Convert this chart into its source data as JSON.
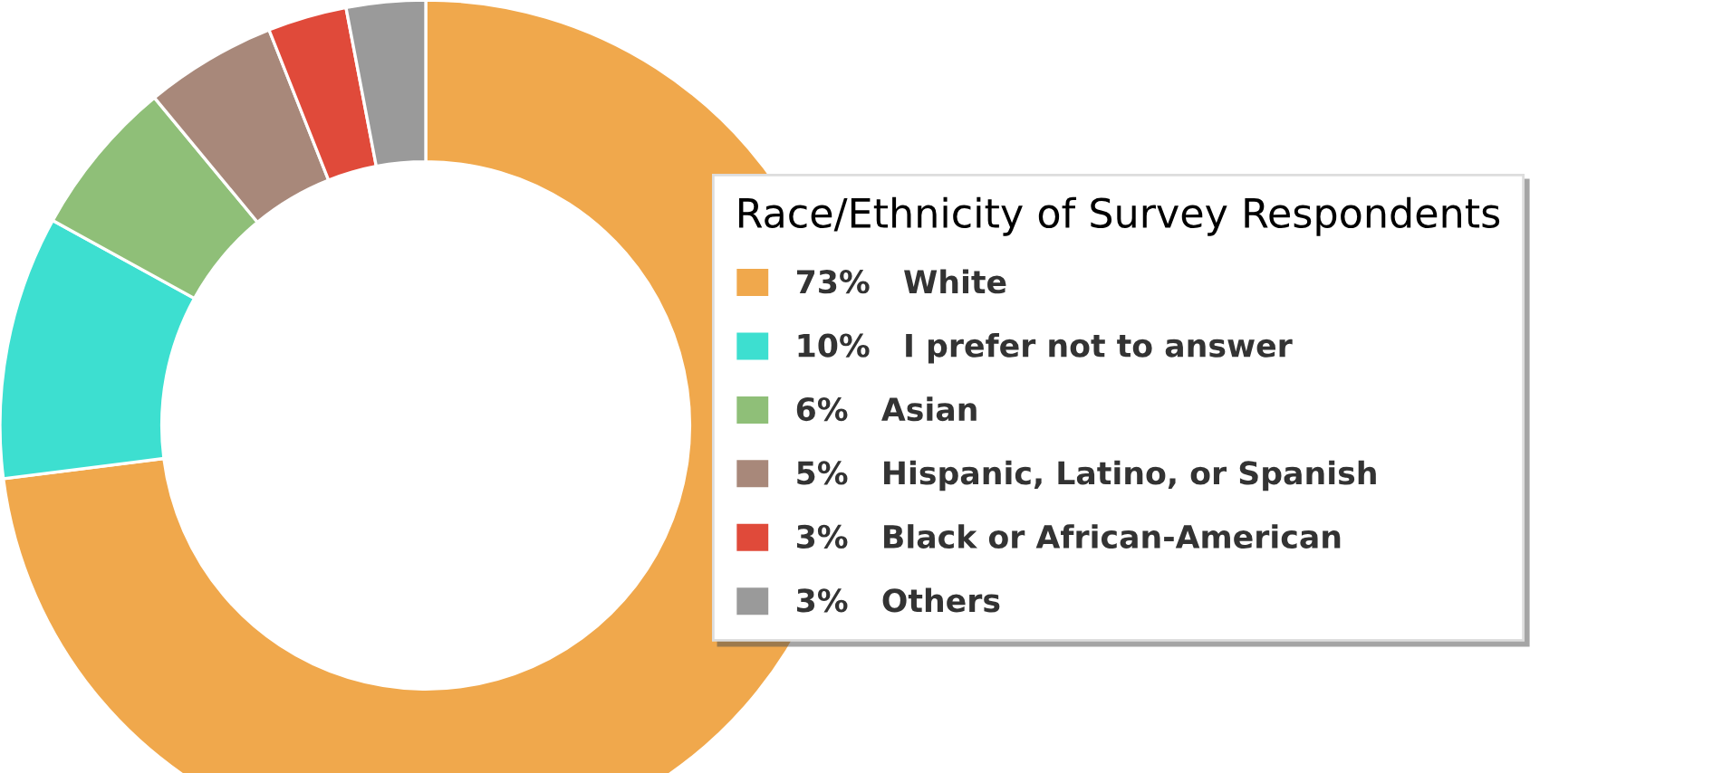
{
  "chart_data": {
    "type": "donut",
    "title": "Race/Ethnicity of Survey Respondents",
    "categories": [
      "White",
      "I prefer not to answer",
      "Asian",
      "Hispanic, Latino, or Spanish",
      "Black or African-American",
      "Others"
    ],
    "values": [
      73,
      10,
      6,
      5,
      3,
      3
    ],
    "value_labels": [
      "73%",
      "10%",
      "6%",
      "5%",
      "3%",
      "3%"
    ],
    "colors": [
      "#f0a84c",
      "#3ddfd0",
      "#8fbf78",
      "#a8887a",
      "#e04a3a",
      "#9a9a9a"
    ],
    "legend": "right"
  }
}
